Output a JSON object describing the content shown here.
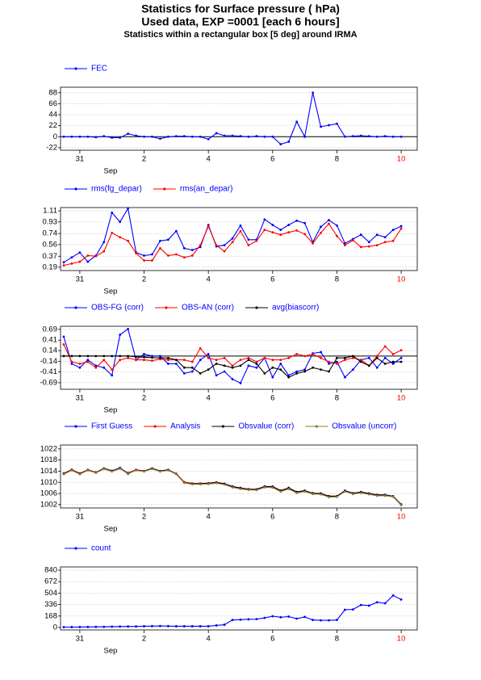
{
  "title_lines": [
    "Statistics for  Surface pressure ( hPa)",
    "Used data, EXP =0001 [each  6 hours]",
    "Statistics within a rectangular box [5 deg] around IRMA"
  ],
  "chart_data": [
    {
      "type": "line",
      "x_label": "Sep",
      "xlim": [
        30.4,
        41.5
      ],
      "ylim": [
        -27,
        99
      ],
      "yticks": [
        -22,
        0,
        22,
        44,
        66,
        88
      ],
      "grid": true,
      "hline": 0,
      "last_xtick_color": "#ff0000",
      "xticks": [
        {
          "value": 31,
          "label": "31"
        },
        {
          "value": 33,
          "label": "2"
        },
        {
          "value": 35,
          "label": "4"
        },
        {
          "value": 37,
          "label": "6"
        },
        {
          "value": 39,
          "label": "8"
        },
        {
          "value": 41,
          "label": "10"
        }
      ],
      "x": [
        30.5,
        30.75,
        31,
        31.25,
        31.5,
        31.75,
        32,
        32.25,
        32.5,
        32.75,
        33,
        33.25,
        33.5,
        33.75,
        34,
        34.25,
        34.5,
        34.75,
        35,
        35.25,
        35.5,
        35.75,
        36,
        36.25,
        36.5,
        36.75,
        37,
        37.25,
        37.5,
        37.75,
        38,
        38.25,
        38.5,
        38.75,
        39,
        39.25,
        39.5,
        39.75,
        40,
        40.25,
        40.5,
        40.75,
        41
      ],
      "series": [
        {
          "name": "FEC",
          "color": "#0000ff",
          "values": [
            0,
            0,
            0,
            0,
            -1,
            1,
            -2,
            -2,
            6,
            2,
            0,
            0,
            -4,
            0,
            1,
            1,
            0,
            0,
            -5,
            7,
            2,
            2,
            1,
            0,
            1,
            0,
            0,
            -15,
            -10,
            30,
            0,
            88,
            20,
            23,
            26,
            0,
            1,
            2,
            1,
            0,
            1,
            0,
            0
          ]
        }
      ]
    },
    {
      "type": "line",
      "x_label": "Sep",
      "xlim": [
        30.4,
        41.5
      ],
      "ylim": [
        0.136,
        1.164
      ],
      "yticks": [
        0.19,
        0.37,
        0.56,
        0.74,
        0.93,
        1.11
      ],
      "grid": true,
      "last_xtick_color": "#ff0000",
      "xticks": [
        {
          "value": 31,
          "label": "31"
        },
        {
          "value": 33,
          "label": "2"
        },
        {
          "value": 35,
          "label": "4"
        },
        {
          "value": 37,
          "label": "6"
        },
        {
          "value": 39,
          "label": "8"
        },
        {
          "value": 41,
          "label": "10"
        }
      ],
      "x": [
        30.5,
        30.75,
        31,
        31.25,
        31.5,
        31.75,
        32,
        32.25,
        32.5,
        32.75,
        33,
        33.25,
        33.5,
        33.75,
        34,
        34.25,
        34.5,
        34.75,
        35,
        35.25,
        35.5,
        35.75,
        36,
        36.25,
        36.5,
        36.75,
        37,
        37.25,
        37.5,
        37.75,
        38,
        38.25,
        38.5,
        38.75,
        39,
        39.25,
        39.5,
        39.75,
        40,
        40.25,
        40.5,
        40.75,
        41
      ],
      "series": [
        {
          "name": "rms(fg_depar)",
          "color": "#0000ff",
          "values": [
            0.27,
            0.35,
            0.43,
            0.28,
            0.38,
            0.6,
            1.08,
            0.93,
            1.15,
            0.43,
            0.38,
            0.4,
            0.62,
            0.64,
            0.78,
            0.5,
            0.47,
            0.52,
            0.88,
            0.53,
            0.55,
            0.66,
            0.87,
            0.64,
            0.64,
            0.97,
            0.88,
            0.8,
            0.88,
            0.95,
            0.91,
            0.6,
            0.85,
            0.96,
            0.87,
            0.58,
            0.65,
            0.72,
            0.6,
            0.72,
            0.68,
            0.8,
            0.86
          ]
        },
        {
          "name": "rms(an_depar)",
          "color": "#ff0000",
          "values": [
            0.22,
            0.25,
            0.28,
            0.38,
            0.37,
            0.45,
            0.75,
            0.68,
            0.62,
            0.42,
            0.3,
            0.3,
            0.5,
            0.38,
            0.4,
            0.35,
            0.38,
            0.55,
            0.86,
            0.55,
            0.45,
            0.6,
            0.78,
            0.55,
            0.62,
            0.8,
            0.76,
            0.72,
            0.76,
            0.79,
            0.73,
            0.58,
            0.75,
            0.9,
            0.7,
            0.55,
            0.63,
            0.52,
            0.53,
            0.55,
            0.6,
            0.62,
            0.82
          ]
        }
      ]
    },
    {
      "type": "line",
      "x_label": "Sep",
      "xlim": [
        30.4,
        41.5
      ],
      "ylim": [
        -0.86,
        0.77
      ],
      "yticks": [
        -0.69,
        -0.41,
        -0.14,
        0.14,
        0.41,
        0.69
      ],
      "grid": true,
      "hline": 0,
      "last_xtick_color": "#ff0000",
      "xticks": [
        {
          "value": 31,
          "label": "31"
        },
        {
          "value": 33,
          "label": "2"
        },
        {
          "value": 35,
          "label": "4"
        },
        {
          "value": 37,
          "label": "6"
        },
        {
          "value": 39,
          "label": "8"
        },
        {
          "value": 41,
          "label": "10"
        }
      ],
      "x": [
        30.5,
        30.75,
        31,
        31.25,
        31.5,
        31.75,
        32,
        32.25,
        32.5,
        32.75,
        33,
        33.25,
        33.5,
        33.75,
        34,
        34.25,
        34.5,
        34.75,
        35,
        35.25,
        35.5,
        35.75,
        36,
        36.25,
        36.5,
        36.75,
        37,
        37.25,
        37.5,
        37.75,
        38,
        38.25,
        38.5,
        38.75,
        39,
        39.25,
        39.5,
        39.75,
        40,
        40.25,
        40.5,
        40.75,
        41
      ],
      "series": [
        {
          "name": "OBS-FG (corr)",
          "color": "#0000ff",
          "values": [
            0.5,
            -0.2,
            -0.3,
            -0.1,
            -0.25,
            -0.3,
            -0.5,
            0.55,
            0.7,
            -0.1,
            0.05,
            0,
            0,
            -0.2,
            -0.2,
            -0.45,
            -0.4,
            -0.1,
            0.05,
            -0.5,
            -0.4,
            -0.6,
            -0.7,
            -0.25,
            -0.3,
            -0.05,
            -0.55,
            -0.2,
            -0.5,
            -0.4,
            -0.35,
            0.07,
            0.1,
            -0.2,
            -0.15,
            -0.55,
            -0.35,
            -0.1,
            -0.05,
            -0.3,
            -0.05,
            -0.2,
            -0.05
          ]
        },
        {
          "name": "OBS-AN (corr)",
          "color": "#ff0000",
          "values": [
            0.3,
            -0.15,
            -0.2,
            -0.15,
            -0.3,
            -0.1,
            -0.35,
            -0.1,
            -0.05,
            -0.1,
            -0.1,
            -0.12,
            -0.08,
            -0.1,
            -0.1,
            -0.1,
            -0.15,
            0.2,
            -0.05,
            -0.1,
            -0.05,
            -0.25,
            -0.1,
            -0.05,
            -0.15,
            -0.05,
            -0.1,
            -0.1,
            -0.05,
            0.05,
            0,
            0.05,
            -0.05,
            -0.15,
            -0.2,
            -0.1,
            -0.05,
            -0.1,
            -0.25,
            0,
            0.25,
            0.05,
            0.15
          ]
        },
        {
          "name": "avg(biascorr)",
          "color": "#000000",
          "values": [
            0,
            0,
            0,
            0,
            0,
            0,
            0,
            0,
            0,
            -0.02,
            -0.03,
            -0.04,
            -0.05,
            -0.05,
            -0.1,
            -0.3,
            -0.3,
            -0.45,
            -0.35,
            -0.2,
            -0.25,
            -0.3,
            -0.25,
            -0.1,
            -0.2,
            -0.45,
            -0.3,
            -0.35,
            -0.55,
            -0.45,
            -0.4,
            -0.3,
            -0.35,
            -0.4,
            -0.05,
            -0.05,
            0,
            -0.15,
            -0.25,
            -0.05,
            -0.2,
            -0.15,
            -0.15
          ]
        }
      ]
    },
    {
      "type": "line",
      "x_label": "Sep",
      "xlim": [
        30.4,
        41.5
      ],
      "ylim": [
        1000.8,
        1023.4
      ],
      "yticks": [
        1002,
        1006,
        1010,
        1014,
        1018,
        1022
      ],
      "grid": true,
      "last_xtick_color": "#ff0000",
      "xticks": [
        {
          "value": 31,
          "label": "31"
        },
        {
          "value": 33,
          "label": "2"
        },
        {
          "value": 35,
          "label": "4"
        },
        {
          "value": 37,
          "label": "6"
        },
        {
          "value": 39,
          "label": "8"
        },
        {
          "value": 41,
          "label": "10"
        }
      ],
      "x": [
        30.5,
        30.75,
        31,
        31.25,
        31.5,
        31.75,
        32,
        32.25,
        32.5,
        32.75,
        33,
        33.25,
        33.5,
        33.75,
        34,
        34.25,
        34.5,
        34.75,
        35,
        35.25,
        35.5,
        35.75,
        36,
        36.25,
        36.5,
        36.75,
        37,
        37.25,
        37.5,
        37.75,
        38,
        38.25,
        38.5,
        38.75,
        39,
        39.25,
        39.5,
        39.75,
        40,
        40.25,
        40.5,
        40.75,
        41
      ],
      "series": [
        {
          "name": "First Guess",
          "color": "#0000ff",
          "values": [
            1013,
            1014.5,
            1013,
            1014.5,
            1013.5,
            1015,
            1014,
            1015.2,
            1013,
            1014.5,
            1014,
            1015,
            1014,
            1014.5,
            1013,
            1010,
            1009.5,
            1009.5,
            1009.7,
            1010,
            1009.5,
            1008.5,
            1008,
            1007.5,
            1007.5,
            1008.5,
            1008.5,
            1007,
            1008,
            1006.5,
            1007,
            1006,
            1006,
            1005,
            1005,
            1007,
            1006,
            1006.5,
            1006,
            1005.5,
            1005.5,
            1005,
            1002
          ]
        },
        {
          "name": "Analysis",
          "color": "#ff0000",
          "values": [
            1013.2,
            1014.6,
            1013.2,
            1014.5,
            1013.6,
            1014.9,
            1014.2,
            1015,
            1013.4,
            1014.5,
            1014.1,
            1014.9,
            1014,
            1014.4,
            1013.1,
            1010.1,
            1009.6,
            1009.6,
            1009.7,
            1010,
            1009.4,
            1008.4,
            1008,
            1007.6,
            1007.4,
            1008.4,
            1008.5,
            1007.1,
            1007.9,
            1006.6,
            1007,
            1006,
            1005.9,
            1005.1,
            1005.1,
            1006.9,
            1006,
            1006.4,
            1005.9,
            1005.5,
            1005.4,
            1005,
            1002.1
          ]
        },
        {
          "name": "Obsvalue (corr)",
          "color": "#000000",
          "values": [
            1013.1,
            1014.4,
            1013.1,
            1014.4,
            1013.5,
            1015,
            1014.1,
            1015.1,
            1013.2,
            1014.4,
            1014,
            1015,
            1014.1,
            1014.5,
            1013,
            1009.9,
            1009.5,
            1009.5,
            1009.6,
            1009.9,
            1009.5,
            1008.5,
            1007.9,
            1007.5,
            1007.5,
            1008.5,
            1008.4,
            1007,
            1008,
            1006.5,
            1007,
            1006.1,
            1006,
            1005,
            1005,
            1007,
            1006.1,
            1006.5,
            1006,
            1005.5,
            1005.5,
            1005,
            1002
          ]
        },
        {
          "name": "Obsvalue (uncorr)",
          "color": "#8b7d3a",
          "values": [
            1012.9,
            1014.3,
            1012.9,
            1014.3,
            1013.4,
            1014.8,
            1013.9,
            1014.9,
            1013.1,
            1014.3,
            1013.9,
            1014.8,
            1013.9,
            1014.3,
            1012.9,
            1009.8,
            1009.3,
            1009.3,
            1009.4,
            1009.7,
            1009.2,
            1008.2,
            1007.6,
            1007.3,
            1007.2,
            1008.2,
            1008.1,
            1006.7,
            1007.6,
            1006.2,
            1006.7,
            1005.8,
            1005.7,
            1004.7,
            1004.8,
            1006.7,
            1005.8,
            1006.2,
            1005.7,
            1005.2,
            1005.2,
            1004.8,
            1001.8
          ]
        }
      ]
    },
    {
      "type": "line",
      "x_label": "Sep",
      "xlim": [
        30.4,
        41.5
      ],
      "ylim": [
        -36,
        888
      ],
      "yticks": [
        0,
        168,
        336,
        504,
        672,
        840
      ],
      "grid": true,
      "last_xtick_color": "#ff0000",
      "xticks": [
        {
          "value": 31,
          "label": "31"
        },
        {
          "value": 33,
          "label": "2"
        },
        {
          "value": 35,
          "label": "4"
        },
        {
          "value": 37,
          "label": "6"
        },
        {
          "value": 39,
          "label": "8"
        },
        {
          "value": 41,
          "label": "10"
        }
      ],
      "x": [
        30.5,
        30.75,
        31,
        31.25,
        31.5,
        31.75,
        32,
        32.25,
        32.5,
        32.75,
        33,
        33.25,
        33.5,
        33.75,
        34,
        34.25,
        34.5,
        34.75,
        35,
        35.25,
        35.5,
        35.75,
        36,
        36.25,
        36.5,
        36.75,
        37,
        37.25,
        37.5,
        37.75,
        38,
        38.25,
        38.5,
        38.75,
        39,
        39.25,
        39.5,
        39.75,
        40,
        40.25,
        40.5,
        40.75,
        41
      ],
      "series": [
        {
          "name": "count",
          "color": "#0000ff",
          "values": [
            5,
            6,
            7,
            8,
            9,
            10,
            12,
            14,
            15,
            16,
            18,
            20,
            22,
            20,
            18,
            18,
            18,
            18,
            18,
            30,
            40,
            110,
            115,
            120,
            122,
            140,
            165,
            150,
            160,
            130,
            155,
            110,
            105,
            105,
            110,
            260,
            265,
            330,
            320,
            370,
            355,
            470,
            410
          ]
        }
      ]
    }
  ]
}
